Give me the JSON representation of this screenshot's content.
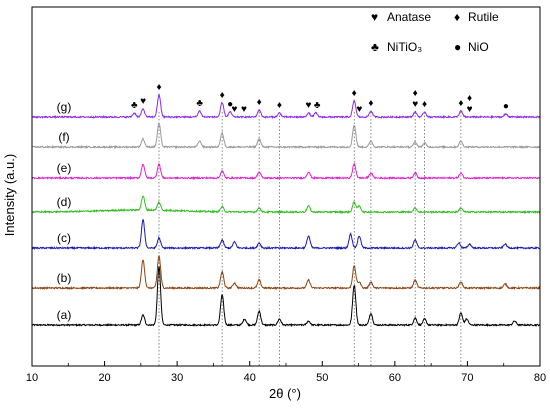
{
  "chart_data": {
    "type": "line",
    "title": "",
    "xlabel": "2θ (°)",
    "ylabel": "Intensity (a.u.)",
    "xlim": [
      10,
      80
    ],
    "xticks": [
      10,
      20,
      30,
      40,
      50,
      60,
      70,
      80
    ],
    "y_ticks_shown": false,
    "legend": {
      "placement": "top-right",
      "entries": [
        {
          "symbol": "♥",
          "label": "Anatase"
        },
        {
          "symbol": "♦",
          "label": "Rutile"
        },
        {
          "symbol": "♣",
          "label": "NiTiO₃"
        },
        {
          "symbol": "●",
          "label": "NiO"
        }
      ]
    },
    "reference_lines_2theta": [
      27.5,
      36.2,
      41.3,
      44.1,
      54.4,
      56.7,
      62.8,
      64.1,
      69.1
    ],
    "series": [
      {
        "label": "(a)",
        "color": "#000000",
        "peaks": [
          [
            25.3,
            10
          ],
          [
            27.5,
            58
          ],
          [
            36.2,
            30
          ],
          [
            39.3,
            6
          ],
          [
            41.3,
            14
          ],
          [
            44.1,
            6
          ],
          [
            48.1,
            4
          ],
          [
            54.4,
            40
          ],
          [
            56.7,
            12
          ],
          [
            62.8,
            7
          ],
          [
            64.1,
            6
          ],
          [
            69.1,
            12
          ],
          [
            69.9,
            6
          ],
          [
            76.5,
            4
          ]
        ]
      },
      {
        "label": "(b)",
        "color": "#8b4513",
        "peaks": [
          [
            25.3,
            28
          ],
          [
            27.5,
            32
          ],
          [
            36.2,
            16
          ],
          [
            37.9,
            5
          ],
          [
            41.3,
            8
          ],
          [
            48.1,
            8
          ],
          [
            54.4,
            22
          ],
          [
            55.1,
            6
          ],
          [
            56.7,
            6
          ],
          [
            62.8,
            8
          ],
          [
            69.1,
            6
          ],
          [
            75.2,
            4
          ]
        ]
      },
      {
        "label": "(c)",
        "color": "#1a1aaa",
        "peaks": [
          [
            25.3,
            28
          ],
          [
            27.5,
            10
          ],
          [
            36.2,
            8
          ],
          [
            37.9,
            6
          ],
          [
            41.3,
            5
          ],
          [
            48.1,
            12
          ],
          [
            53.9,
            14
          ],
          [
            55.1,
            12
          ],
          [
            62.8,
            8
          ],
          [
            68.8,
            5
          ],
          [
            70.3,
            4
          ],
          [
            75.2,
            4
          ]
        ]
      },
      {
        "label": "(d)",
        "color": "#33bb22",
        "peaks": [
          [
            25.3,
            14
          ],
          [
            27.5,
            8
          ],
          [
            36.2,
            5
          ],
          [
            41.3,
            4
          ],
          [
            48.1,
            6
          ],
          [
            54.4,
            10
          ],
          [
            55.1,
            6
          ],
          [
            62.8,
            4
          ],
          [
            69.1,
            4
          ]
        ]
      },
      {
        "label": "(e)",
        "color": "#dd22cc",
        "peaks": [
          [
            25.3,
            14
          ],
          [
            27.5,
            14
          ],
          [
            36.2,
            7
          ],
          [
            41.3,
            6
          ],
          [
            48.1,
            6
          ],
          [
            54.4,
            14
          ],
          [
            56.7,
            5
          ],
          [
            62.8,
            5
          ],
          [
            69.1,
            5
          ]
        ]
      },
      {
        "label": "(f)",
        "color": "#999999",
        "peaks": [
          [
            25.3,
            8
          ],
          [
            27.5,
            24
          ],
          [
            33.1,
            6
          ],
          [
            36.2,
            14
          ],
          [
            41.3,
            8
          ],
          [
            54.4,
            22
          ],
          [
            56.7,
            6
          ],
          [
            62.8,
            5
          ],
          [
            64.1,
            4
          ],
          [
            69.1,
            6
          ]
        ]
      },
      {
        "label": "(g)",
        "color": "#8a2be2",
        "peaks": [
          [
            24.1,
            4
          ],
          [
            25.3,
            8
          ],
          [
            27.5,
            22
          ],
          [
            33.1,
            6
          ],
          [
            36.2,
            14
          ],
          [
            37.3,
            5
          ],
          [
            41.3,
            7
          ],
          [
            44.1,
            4
          ],
          [
            48.1,
            4
          ],
          [
            49.1,
            4
          ],
          [
            54.4,
            16
          ],
          [
            56.7,
            6
          ],
          [
            62.8,
            5
          ],
          [
            64.1,
            5
          ],
          [
            69.1,
            6
          ],
          [
            75.3,
            3
          ]
        ]
      }
    ],
    "phase_markers": [
      {
        "symbol": "♣",
        "x": 24.1
      },
      {
        "symbol": "♥",
        "x": 25.3
      },
      {
        "symbol": "♦",
        "x": 27.5
      },
      {
        "symbol": "♣",
        "x": 33.1
      },
      {
        "symbol": "♦",
        "x": 36.2
      },
      {
        "symbol": "●",
        "x": 37.3
      },
      {
        "symbol": "♥",
        "x": 37.9
      },
      {
        "symbol": "♥",
        "x": 39.2
      },
      {
        "symbol": "♦",
        "x": 41.3
      },
      {
        "symbol": "♦",
        "x": 44.1
      },
      {
        "symbol": "♥",
        "x": 48.1
      },
      {
        "symbol": "♣",
        "x": 49.3
      },
      {
        "symbol": "♦",
        "x": 54.4
      },
      {
        "symbol": "♥",
        "x": 55.1
      },
      {
        "symbol": "♦",
        "x": 56.7
      },
      {
        "symbol": "♥",
        "x": 62.8
      },
      {
        "symbol": "♦",
        "x": 62.8
      },
      {
        "symbol": "♦",
        "x": 64.1
      },
      {
        "symbol": "♦",
        "x": 69.1
      },
      {
        "symbol": "♥",
        "x": 70.3
      },
      {
        "symbol": "♦",
        "x": 70.3
      },
      {
        "symbol": "●",
        "x": 75.3
      }
    ]
  }
}
